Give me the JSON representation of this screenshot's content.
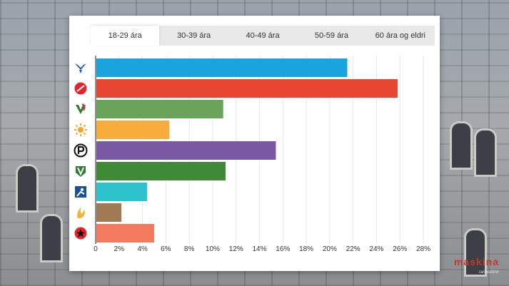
{
  "tabs": [
    {
      "label": "18-29 ára",
      "active": true
    },
    {
      "label": "30-39 ára",
      "active": false
    },
    {
      "label": "40-49 ára",
      "active": false
    },
    {
      "label": "50-59 ára",
      "active": false
    },
    {
      "label": "60 ára og eldri",
      "active": false
    }
  ],
  "party_icons": [
    "falcon-icon",
    "rose-icon",
    "v-leaf-icon",
    "sun-icon",
    "pirate-icon",
    "wheat-sheaf-icon",
    "figure-icon",
    "flame-icon",
    "star-icon"
  ],
  "chart_data": {
    "type": "bar",
    "orientation": "horizontal",
    "categories": [
      "",
      "",
      "",
      "",
      "",
      "",
      "",
      "",
      ""
    ],
    "values": [
      21.5,
      25.8,
      10.9,
      6.3,
      15.4,
      11.1,
      4.4,
      2.2,
      5.0
    ],
    "colors": [
      "#1aa3dd",
      "#e74631",
      "#6aa35a",
      "#f7ac3c",
      "#7a5aa5",
      "#3f8b35",
      "#2ec3cc",
      "#a07a55",
      "#f47a5e"
    ],
    "xlim": [
      0,
      28
    ],
    "xticks": [
      "0",
      "2%",
      "4%",
      "6%",
      "8%",
      "10%",
      "12%",
      "14%",
      "16%",
      "18%",
      "20%",
      "22%",
      "24%",
      "26%",
      "28%"
    ],
    "grid": true,
    "title": "",
    "xlabel": "",
    "ylabel": ""
  },
  "brand": {
    "name": "maskina",
    "tagline": "rannsóknir"
  }
}
